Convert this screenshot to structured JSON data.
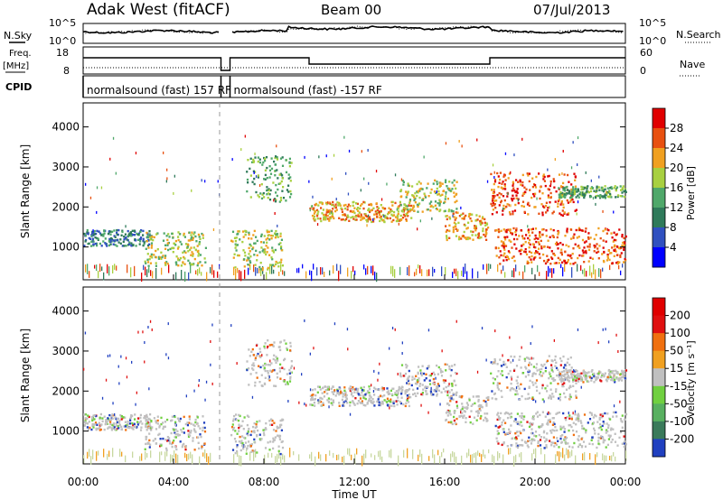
{
  "header": {
    "station": "Adak West (fitACF)",
    "beam": "Beam 00",
    "date": "07/Jul/2013"
  },
  "status_panels": {
    "left_labels": {
      "nsky": "N.Sky",
      "freq": "Freq.",
      "mhz": "[MHz]",
      "cpid": "CPID"
    },
    "right_labels": {
      "nsearch": "N.Search",
      "nave": "Nave"
    },
    "nsky_ticks": [
      "10^5",
      "10^0"
    ],
    "freq_ticks": [
      "18",
      "8"
    ],
    "nave_ticks": [
      "60",
      "0"
    ],
    "cpid_segments": [
      {
        "text": "normalsound (fast) 157 RF",
        "start_hour": 0,
        "end_hour": 6.1
      },
      {
        "text": "normalsound (fast) -157 RF",
        "start_hour": 6.5,
        "end_hour": 24
      }
    ],
    "freq_trace": [
      [
        0,
        15
      ],
      [
        6.1,
        15
      ],
      [
        6.1,
        8
      ],
      [
        6.5,
        8
      ],
      [
        6.5,
        15
      ],
      [
        10,
        15
      ],
      [
        10,
        11.5
      ],
      [
        18,
        11.5
      ],
      [
        18,
        15
      ],
      [
        24,
        15
      ]
    ],
    "nave_trace": [
      [
        0,
        14
      ],
      [
        24,
        14
      ]
    ]
  },
  "chart_data": [
    {
      "type": "heatmap",
      "title": "Power",
      "ylabel": "Slant Range [km]",
      "ylim": [
        180,
        4600
      ],
      "yticks": [
        "1000",
        "2000",
        "3000",
        "4000"
      ],
      "colorbar": {
        "label": "Power [dB]",
        "ticks": [
          "4",
          "8",
          "12",
          "16",
          "20",
          "24",
          "28"
        ],
        "colors": [
          "#0000ff",
          "#3050c0",
          "#2f7a5a",
          "#4fa86a",
          "#a8d040",
          "#f0a020",
          "#e85010",
          "#e00000"
        ]
      },
      "echo_regions": [
        {
          "t0": 0.0,
          "t1": 3.0,
          "r0": 1050,
          "r1": 1450,
          "level": 2
        },
        {
          "t0": 2.7,
          "t1": 5.4,
          "r0": 550,
          "r1": 1400,
          "level": 4
        },
        {
          "t0": 6.5,
          "t1": 8.8,
          "r0": 450,
          "r1": 1450,
          "level": 4
        },
        {
          "t0": 7.2,
          "t1": 9.2,
          "r0": 2150,
          "r1": 3300,
          "level": 3
        },
        {
          "t0": 10.0,
          "t1": 14.5,
          "r0": 1650,
          "r1": 2150,
          "level": 5
        },
        {
          "t0": 14.0,
          "t1": 16.5,
          "r0": 1900,
          "r1": 2700,
          "level": 4
        },
        {
          "t0": 16.0,
          "t1": 17.9,
          "r0": 1200,
          "r1": 1900,
          "level": 5
        },
        {
          "t0": 18.0,
          "t1": 21.8,
          "r0": 1800,
          "r1": 2900,
          "level": 6
        },
        {
          "t0": 18.2,
          "t1": 24.0,
          "r0": 600,
          "r1": 1500,
          "level": 6
        },
        {
          "t0": 21.0,
          "t1": 24.0,
          "r0": 2250,
          "r1": 2550,
          "level": 3
        }
      ]
    },
    {
      "type": "heatmap",
      "title": "Velocity",
      "ylabel": "Slant Range [km]",
      "xlabel": "Time UT",
      "ylim": [
        180,
        4600
      ],
      "yticks": [
        "1000",
        "2000",
        "3000",
        "4000"
      ],
      "xticks": [
        "00:00",
        "04:00",
        "08:00",
        "12:00",
        "16:00",
        "20:00",
        "00:00"
      ],
      "colorbar": {
        "label": "Velocity [m s⁻¹]",
        "ticks": [
          "200",
          "100",
          "50",
          "15",
          "-15",
          "-50",
          "-100",
          "-200"
        ],
        "colors": [
          "#2040c0",
          "#3a7a5a",
          "#58b060",
          "#70d040",
          "#c0c0c0",
          "#f0a020",
          "#f07010",
          "#e01010",
          "#e00000"
        ]
      },
      "echo_regions": [
        {
          "t0": 0.0,
          "t1": 3.0,
          "r0": 1050,
          "r1": 1450,
          "level": 4
        },
        {
          "t0": 2.7,
          "t1": 5.4,
          "r0": 550,
          "r1": 1400,
          "level": 4
        },
        {
          "t0": 6.5,
          "t1": 8.8,
          "r0": 450,
          "r1": 1450,
          "level": 4
        },
        {
          "t0": 7.2,
          "t1": 9.2,
          "r0": 2150,
          "r1": 3300,
          "level": 4
        },
        {
          "t0": 10.0,
          "t1": 14.5,
          "r0": 1650,
          "r1": 2150,
          "level": 4
        },
        {
          "t0": 14.0,
          "t1": 16.5,
          "r0": 1900,
          "r1": 2700,
          "level": 3
        },
        {
          "t0": 16.0,
          "t1": 17.9,
          "r0": 1200,
          "r1": 1900,
          "level": 4
        },
        {
          "t0": 18.0,
          "t1": 21.8,
          "r0": 1800,
          "r1": 2900,
          "level": 4
        },
        {
          "t0": 18.2,
          "t1": 24.0,
          "r0": 600,
          "r1": 1500,
          "level": 4
        },
        {
          "t0": 21.0,
          "t1": 24.0,
          "r0": 2250,
          "r1": 2550,
          "level": 3
        }
      ]
    }
  ]
}
